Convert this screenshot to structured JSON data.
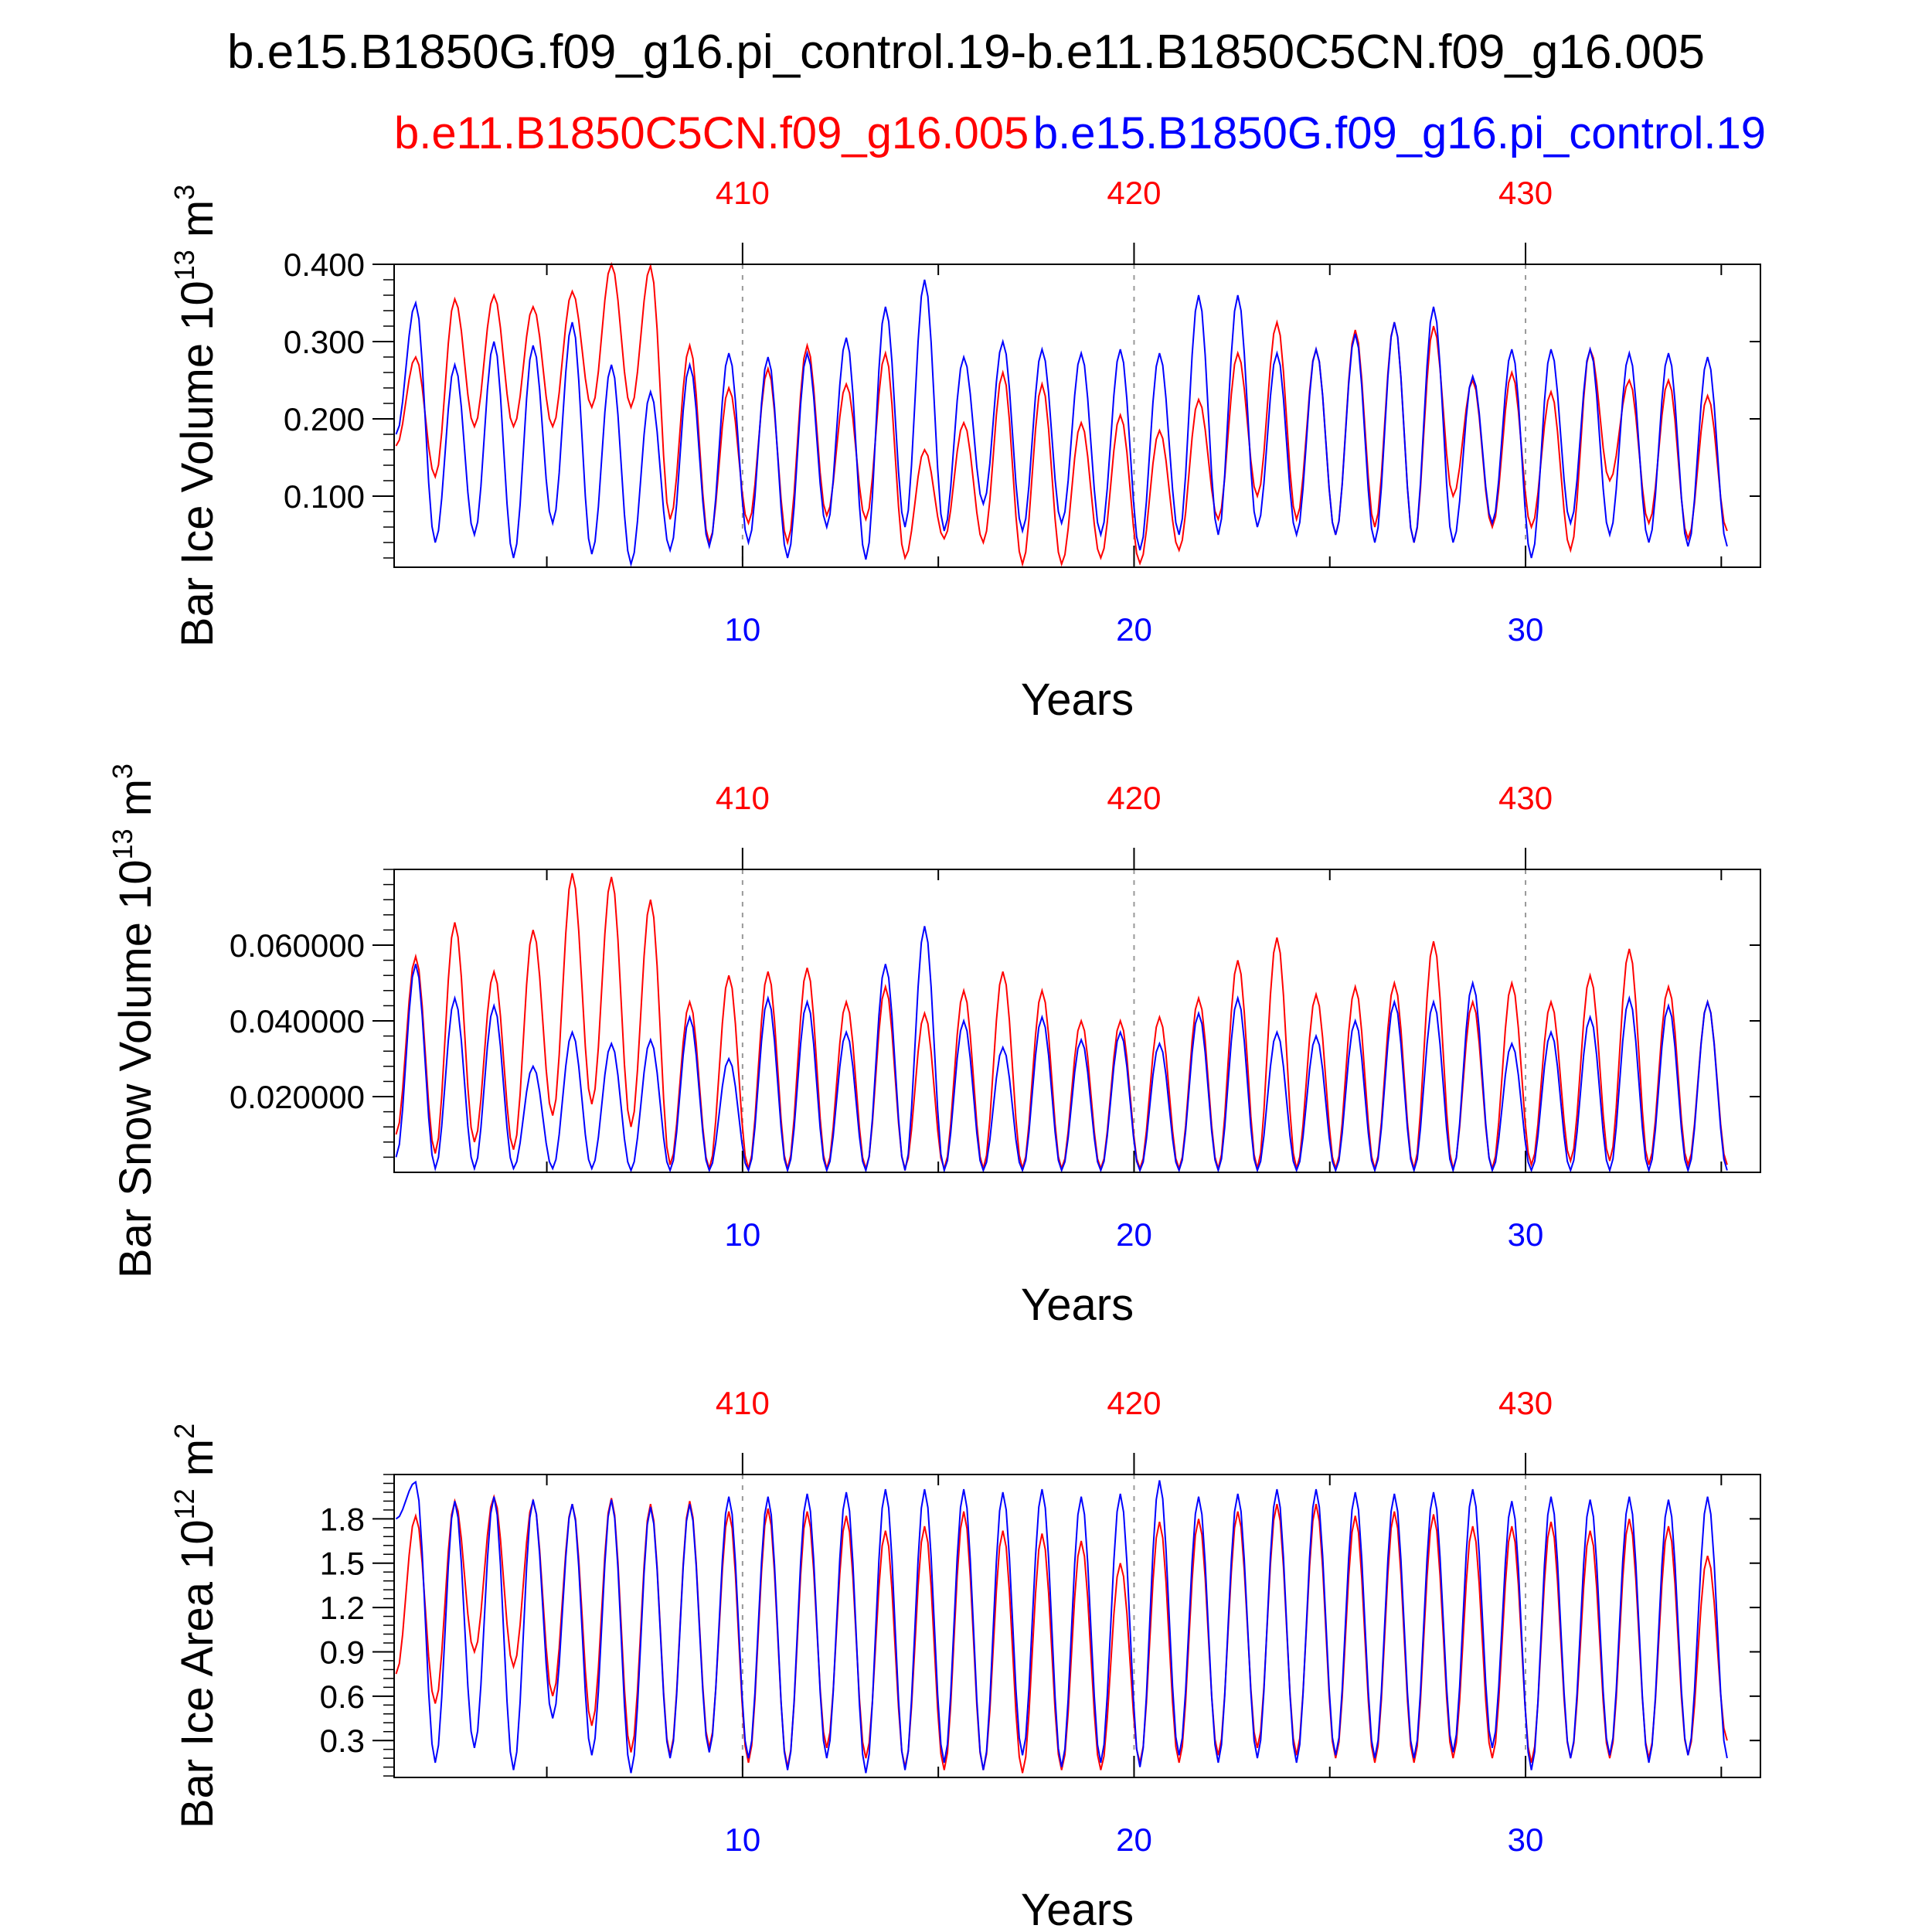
{
  "header": {
    "title": "b.e15.B1850G.f09_g16.pi_control.19-b.e11.B1850C5CN.f09_g16.005",
    "case_red": "b.e11.B1850C5CN.f09_g16.005",
    "case_blue": "b.e15.B1850G.f09_g16.pi_control.19"
  },
  "colors": {
    "red": "#ff0000",
    "blue": "#0000ff",
    "frame": "#000000",
    "grid": "#999999"
  },
  "chart_data": [
    {
      "type": "line",
      "ylabel_main": "Bar Ice Volume 10",
      "ylabel_exp": "13",
      "ylabel_unit": " m",
      "ylabel_unit_exp": "3",
      "xlabel": "Years",
      "bottom_ticks": [
        "10",
        "20",
        "30"
      ],
      "top_ticks": [
        "410",
        "420",
        "430"
      ],
      "x_range": [
        1.1,
        36.0
      ],
      "ylim": [
        0.008,
        0.4
      ],
      "yticks": [
        0.1,
        0.2,
        0.3,
        0.4
      ],
      "ytick_labels": [
        "0.100",
        "0.200",
        "0.300",
        "0.400"
      ],
      "series": [
        {
          "name": "b.e11.B1850C5CN.f09_g16.005",
          "color": "red",
          "maxima": [
            0.28,
            0.355,
            0.36,
            0.345,
            0.365,
            0.4,
            0.398,
            0.295,
            0.24,
            0.265,
            0.295,
            0.245,
            0.285,
            0.16,
            0.195,
            0.26,
            0.245,
            0.195,
            0.205,
            0.185,
            0.225,
            0.285,
            0.325,
            0.29,
            0.315,
            0.325,
            0.32,
            0.25,
            0.26,
            0.235,
            0.29,
            0.25,
            0.25,
            0.23
          ],
          "minima": [
            0.165,
            0.125,
            0.19,
            0.19,
            0.19,
            0.215,
            0.215,
            0.07,
            0.04,
            0.065,
            0.04,
            0.075,
            0.07,
            0.02,
            0.045,
            0.04,
            0.012,
            0.012,
            0.02,
            0.013,
            0.03,
            0.07,
            0.1,
            0.07,
            0.05,
            0.06,
            0.04,
            0.1,
            0.06,
            0.06,
            0.03,
            0.12,
            0.065,
            0.045,
            0.055
          ]
        },
        {
          "name": "b.e15.B1850G.f09_g16.pi_control.19",
          "color": "blue",
          "maxima": [
            0.35,
            0.27,
            0.3,
            0.295,
            0.325,
            0.27,
            0.235,
            0.27,
            0.285,
            0.28,
            0.285,
            0.305,
            0.345,
            0.38,
            0.28,
            0.3,
            0.29,
            0.285,
            0.29,
            0.285,
            0.36,
            0.36,
            0.285,
            0.29,
            0.31,
            0.325,
            0.345,
            0.255,
            0.29,
            0.29,
            0.29,
            0.285,
            0.285,
            0.28
          ],
          "minima": [
            0.18,
            0.04,
            0.05,
            0.02,
            0.065,
            0.025,
            0.012,
            0.03,
            0.035,
            0.04,
            0.02,
            0.06,
            0.018,
            0.06,
            0.055,
            0.09,
            0.055,
            0.065,
            0.05,
            0.03,
            0.05,
            0.05,
            0.06,
            0.05,
            0.05,
            0.04,
            0.04,
            0.04,
            0.065,
            0.02,
            0.065,
            0.05,
            0.04,
            0.035,
            0.035
          ]
        }
      ]
    },
    {
      "type": "line",
      "ylabel_main": "Bar Snow Volume 10",
      "ylabel_exp": "13",
      "ylabel_unit": " m",
      "ylabel_unit_exp": "3",
      "xlabel": "Years",
      "bottom_ticks": [
        "10",
        "20",
        "30"
      ],
      "top_ticks": [
        "410",
        "420",
        "430"
      ],
      "x_range": [
        1.1,
        36.0
      ],
      "ylim": [
        0.0,
        0.08
      ],
      "yticks": [
        0.02,
        0.04,
        0.06
      ],
      "ytick_labels": [
        "0.020000",
        "0.040000",
        "0.060000"
      ],
      "series": [
        {
          "name": "b.e11.B1850C5CN.f09_g16.005",
          "color": "red",
          "maxima": [
            0.057,
            0.066,
            0.053,
            0.064,
            0.079,
            0.078,
            0.072,
            0.045,
            0.052,
            0.053,
            0.054,
            0.045,
            0.049,
            0.042,
            0.048,
            0.053,
            0.048,
            0.04,
            0.04,
            0.041,
            0.046,
            0.056,
            0.062,
            0.047,
            0.049,
            0.05,
            0.061,
            0.045,
            0.05,
            0.045,
            0.052,
            0.059,
            0.049,
            0.045
          ],
          "minima": [
            0.01,
            0.005,
            0.008,
            0.006,
            0.015,
            0.018,
            0.012,
            0.002,
            0.001,
            0.001,
            0.001,
            0.001,
            0.001,
            0.001,
            0.001,
            0.001,
            0.001,
            0.001,
            0.001,
            0.001,
            0.001,
            0.001,
            0.001,
            0.001,
            0.001,
            0.001,
            0.001,
            0.001,
            0.001,
            0.002,
            0.003,
            0.003,
            0.002,
            0.002,
            0.002
          ]
        },
        {
          "name": "b.e15.B1850G.f09_g16.pi_control.19",
          "color": "blue",
          "maxima": [
            0.055,
            0.046,
            0.044,
            0.028,
            0.037,
            0.034,
            0.035,
            0.041,
            0.03,
            0.046,
            0.045,
            0.037,
            0.055,
            0.065,
            0.04,
            0.033,
            0.041,
            0.035,
            0.037,
            0.034,
            0.042,
            0.046,
            0.037,
            0.036,
            0.04,
            0.045,
            0.045,
            0.05,
            0.034,
            0.037,
            0.041,
            0.046,
            0.044,
            0.045
          ],
          "minima": [
            0.004,
            0.001,
            0.001,
            0.001,
            0.001,
            0.001,
            0.0005,
            0.0005,
            0.0005,
            0.0005,
            0.0005,
            0.0005,
            0.0005,
            0.0005,
            0.0005,
            0.0005,
            0.0005,
            0.0005,
            0.0005,
            0.0005,
            0.0005,
            0.0005,
            0.0005,
            0.0005,
            0.0005,
            0.0005,
            0.0005,
            0.0005,
            0.0005,
            0.0005,
            0.0005,
            0.0005,
            0.0005,
            0.0005,
            0.0005
          ]
        }
      ]
    },
    {
      "type": "line",
      "ylabel_main": "Bar Ice Area 10",
      "ylabel_exp": "12",
      "ylabel_unit": " m",
      "ylabel_unit_exp": "2",
      "xlabel": "Years",
      "bottom_ticks": [
        "10",
        "20",
        "30"
      ],
      "top_ticks": [
        "410",
        "420",
        "430"
      ],
      "x_range": [
        1.1,
        36.0
      ],
      "ylim": [
        0.05,
        2.1
      ],
      "yticks": [
        0.3,
        0.6,
        0.9,
        1.2,
        1.5,
        1.8
      ],
      "ytick_labels": [
        "0.3",
        "0.6",
        "0.9",
        "1.2",
        "1.5",
        "1.8"
      ],
      "series": [
        {
          "name": "b.e11.B1850C5CN.f09_g16.005",
          "color": "red",
          "maxima": [
            1.82,
            1.92,
            1.95,
            1.92,
            1.9,
            1.94,
            1.9,
            1.92,
            1.85,
            1.87,
            1.85,
            1.82,
            1.72,
            1.75,
            1.85,
            1.72,
            1.7,
            1.65,
            1.5,
            1.78,
            1.8,
            1.85,
            1.9,
            1.9,
            1.82,
            1.85,
            1.83,
            1.75,
            1.75,
            1.78,
            1.72,
            1.8,
            1.75,
            1.55
          ],
          "minima": [
            0.75,
            0.55,
            0.9,
            0.8,
            0.6,
            0.4,
            0.22,
            0.2,
            0.25,
            0.15,
            0.12,
            0.25,
            0.18,
            0.12,
            0.1,
            0.1,
            0.08,
            0.1,
            0.1,
            0.15,
            0.15,
            0.2,
            0.25,
            0.2,
            0.18,
            0.15,
            0.15,
            0.18,
            0.18,
            0.15,
            0.18,
            0.18,
            0.18,
            0.2,
            0.3
          ]
        },
        {
          "name": "b.e15.B1850G.f09_g16.pi_control.19",
          "color": "blue",
          "maxima": [
            2.05,
            1.92,
            1.95,
            1.93,
            1.9,
            1.93,
            1.88,
            1.9,
            1.95,
            1.95,
            1.97,
            1.98,
            2.0,
            2.0,
            2.0,
            1.98,
            2.0,
            1.95,
            1.97,
            2.06,
            1.95,
            1.97,
            2.0,
            2.0,
            1.98,
            1.97,
            1.98,
            2.0,
            1.92,
            1.95,
            1.93,
            1.95,
            1.93,
            1.95
          ],
          "minima": [
            1.8,
            0.15,
            0.25,
            0.1,
            0.45,
            0.2,
            0.08,
            0.18,
            0.22,
            0.18,
            0.1,
            0.18,
            0.08,
            0.1,
            0.15,
            0.1,
            0.2,
            0.12,
            0.15,
            0.12,
            0.2,
            0.15,
            0.18,
            0.15,
            0.2,
            0.18,
            0.18,
            0.22,
            0.25,
            0.1,
            0.18,
            0.2,
            0.15,
            0.2,
            0.18
          ]
        }
      ]
    }
  ]
}
